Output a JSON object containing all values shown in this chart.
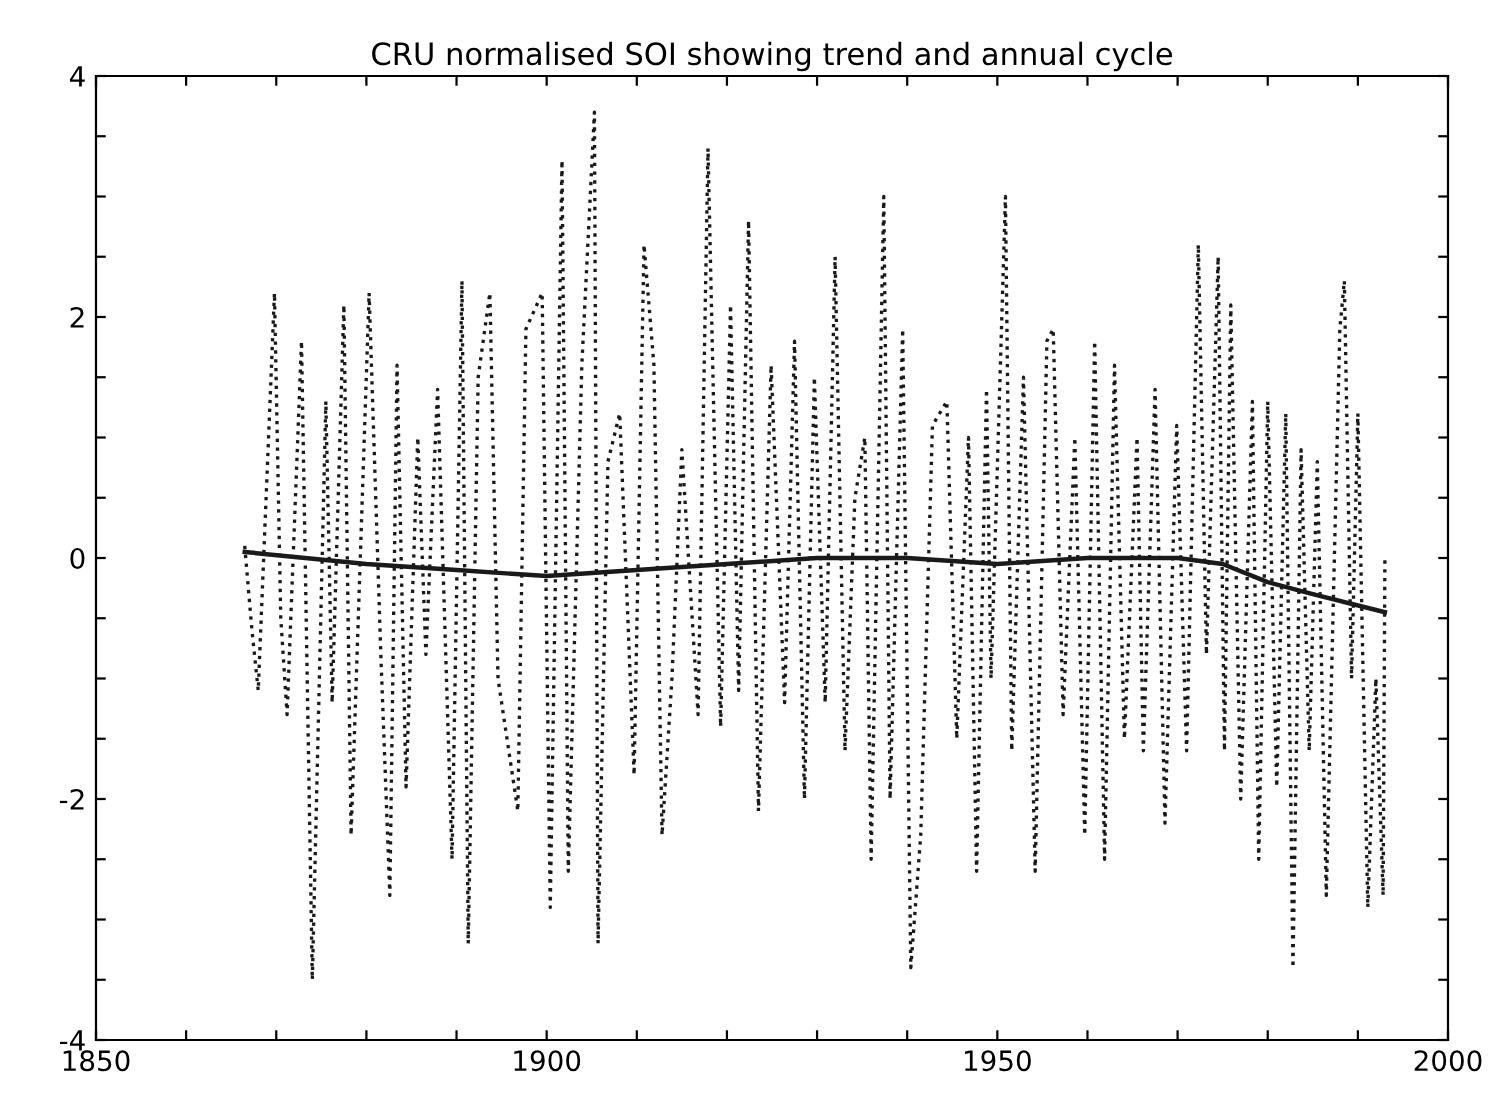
{
  "chart_data": {
    "type": "line",
    "title": "CRU normalised SOI showing trend and annual cycle",
    "xlim": [
      1850,
      2000
    ],
    "ylim": [
      -4,
      4
    ],
    "xticks": [
      1850,
      {
        "value": 1860,
        "label": null
      },
      {
        "value": 1870,
        "label": null
      },
      {
        "value": 1880,
        "label": null
      },
      {
        "value": 1890,
        "label": null
      },
      1900,
      {
        "value": 1910,
        "label": null
      },
      {
        "value": 1920,
        "label": null
      },
      {
        "value": 1930,
        "label": null
      },
      {
        "value": 1940,
        "label": null
      },
      1950,
      {
        "value": 1960,
        "label": null
      },
      {
        "value": 1970,
        "label": null
      },
      {
        "value": 1980,
        "label": null
      },
      {
        "value": 1990,
        "label": null
      },
      2000
    ],
    "yticks": [
      -4,
      {
        "value": -3.5,
        "label": null
      },
      {
        "value": -3,
        "label": null
      },
      {
        "value": -2.5,
        "label": null
      },
      -2,
      {
        "value": -1.5,
        "label": null
      },
      {
        "value": -1,
        "label": null
      },
      {
        "value": -0.5,
        "label": null
      },
      0,
      {
        "value": 0.5,
        "label": null
      },
      {
        "value": 1,
        "label": null
      },
      {
        "value": 1.5,
        "label": null
      },
      2,
      {
        "value": 2.5,
        "label": null
      },
      {
        "value": 3,
        "label": null
      },
      {
        "value": 3.5,
        "label": null
      },
      4
    ],
    "grid": false,
    "legend": false,
    "series": [
      {
        "color": "#1a1a1a",
        "line_style": "dotted",
        "x": [
          1866.5,
          1867.3,
          1868,
          1869.8,
          1870.5,
          1871.2,
          1872.8,
          1874,
          1875.5,
          1876.2,
          1877.5,
          1878.3,
          1880.3,
          1881.6,
          1882.6,
          1883.4,
          1884.4,
          1885.7,
          1886.6,
          1887.9,
          1889.5,
          1890.6,
          1891.3,
          1892.4,
          1893.7,
          1894.6,
          1896.8,
          1897.7,
          1899.5,
          1900.4,
          1901.7,
          1902.4,
          1903.9,
          1905.3,
          1905.7,
          1906.8,
          1908.1,
          1909.7,
          1910.8,
          1911.9,
          1912.8,
          1913.9,
          1915,
          1916.8,
          1917.9,
          1919.3,
          1920.4,
          1921.3,
          1922.4,
          1923.5,
          1924.9,
          1926.4,
          1927.5,
          1928.6,
          1929.7,
          1930.9,
          1932,
          1933.1,
          1934.2,
          1935.3,
          1936,
          1937.4,
          1938.1,
          1939.5,
          1940.4,
          1941.5,
          1942.8,
          1944.4,
          1945.5,
          1946.8,
          1947.7,
          1948.8,
          1949.3,
          1950.9,
          1951.6,
          1952.9,
          1954.2,
          1955.5,
          1956.2,
          1957.3,
          1958.6,
          1959.7,
          1960.8,
          1961.9,
          1963,
          1964.1,
          1965.5,
          1966.2,
          1967.5,
          1968.6,
          1969.9,
          1971,
          1972.3,
          1973.2,
          1974.5,
          1975.2,
          1975.9,
          1977,
          1978.3,
          1979,
          1980,
          1981,
          1982,
          1982.8,
          1983.7,
          1984.6,
          1985.5,
          1986.5,
          1988,
          1988.5,
          1989.3,
          1990,
          1991.1,
          1992,
          1992.8,
          1993
        ],
        "values": [
          0.1,
          -0.6,
          -1.1,
          2.2,
          -0.5,
          -1.3,
          1.8,
          -3.5,
          1.3,
          -1.2,
          2.1,
          -2.3,
          2.2,
          -0.8,
          -2.8,
          1.6,
          -1.9,
          1.0,
          -0.8,
          1.4,
          -2.5,
          2.3,
          -3.2,
          1.5,
          2.2,
          -1.0,
          -2.1,
          1.9,
          2.2,
          -2.9,
          3.3,
          -2.6,
          1.6,
          3.7,
          -3.2,
          0.8,
          1.2,
          -1.8,
          2.6,
          1.6,
          -2.3,
          -1.0,
          0.9,
          -1.3,
          3.4,
          -1.4,
          2.1,
          -1.1,
          2.8,
          -2.1,
          1.6,
          -1.2,
          1.8,
          -2.0,
          1.5,
          -1.2,
          2.5,
          -1.6,
          0.5,
          1.0,
          -2.5,
          3.0,
          -2.0,
          1.9,
          -3.4,
          -2.3,
          1.1,
          1.3,
          -1.5,
          1.0,
          -2.6,
          1.4,
          -1.0,
          3.0,
          -1.6,
          1.5,
          -2.6,
          1.8,
          1.9,
          -1.3,
          1.0,
          -2.3,
          1.8,
          -2.5,
          1.6,
          -1.5,
          1.0,
          -1.6,
          1.4,
          -2.2,
          1.1,
          -1.6,
          2.6,
          -0.8,
          2.5,
          -1.6,
          2.1,
          -2.0,
          1.3,
          -2.5,
          1.3,
          -1.9,
          1.2,
          -3.4,
          0.9,
          -1.6,
          0.8,
          -2.8,
          1.9,
          2.3,
          -1.0,
          1.2,
          -2.9,
          -1.0,
          -2.8,
          0.0
        ]
      },
      {
        "color": "#1a1a1a",
        "line_style": "solid",
        "x": [
          1866.5,
          1880,
          1890,
          1900,
          1910,
          1920,
          1930,
          1940,
          1950,
          1960,
          1970,
          1975,
          1980,
          1985,
          1993
        ],
        "values": [
          0.05,
          -0.05,
          -0.1,
          -0.15,
          -0.1,
          -0.05,
          0.0,
          0.0,
          -0.05,
          0.0,
          0.0,
          -0.05,
          -0.2,
          -0.3,
          -0.45
        ]
      }
    ]
  }
}
